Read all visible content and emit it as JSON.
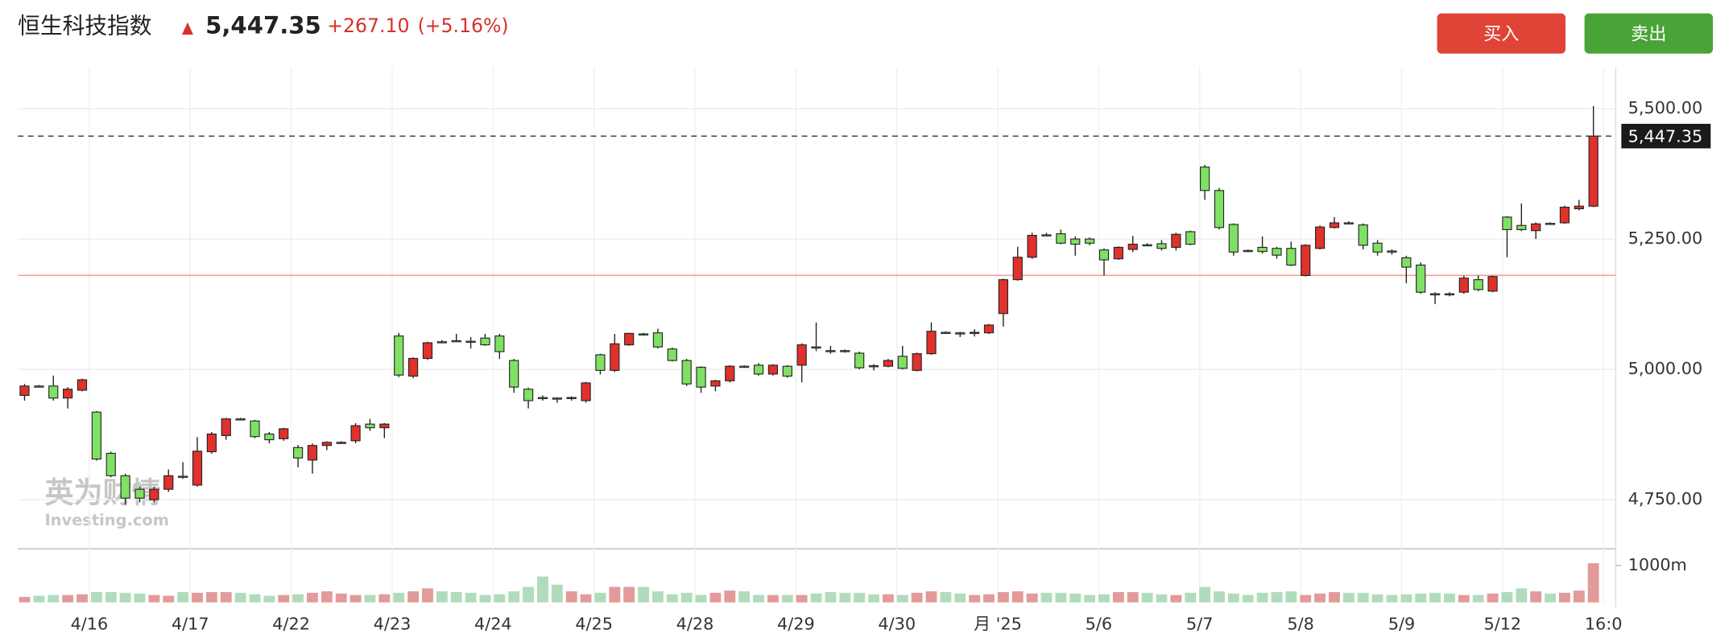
{
  "header": {
    "name": "恒生科技指数",
    "change": "+267.10",
    "change_pct": "(+5.16%)",
    "buy": "买入",
    "sell": "卖出"
  },
  "chart_data": {
    "type": "candlestick",
    "last_price": {
      "value": 5447.35,
      "label": "5,447.35"
    },
    "prev_close": 5180.25,
    "open": [
      4950,
      4968,
      4968,
      4945,
      4960,
      4918,
      4839,
      4796,
      4770,
      4750,
      4770,
      4795,
      4778,
      4842,
      4873,
      4905,
      4901,
      4876,
      4867,
      4850,
      4826,
      4854,
      4860,
      4863,
      4895,
      4888,
      5064,
      4987,
      5021,
      5053,
      5055,
      5054,
      5060,
      5064,
      5017,
      4962,
      4946,
      4945,
      4945,
      4940,
      5028,
      4998,
      5047,
      5068,
      5070,
      5039,
      5017,
      5004,
      4968,
      4978,
      5006,
      5008,
      4991,
      5006,
      5008,
      5043,
      5036,
      5036,
      5031,
      5007,
      5006,
      5025,
      4998,
      5030,
      5071,
      5070,
      5070,
      5070,
      5107,
      5172,
      5215,
      5258,
      5260,
      5250,
      5250,
      5229,
      5212,
      5230,
      5239,
      5241,
      5234,
      5264,
      5388,
      5343,
      5278,
      5228,
      5234,
      5232,
      5232,
      5180,
      5232,
      5272,
      5281,
      5277,
      5242,
      5227,
      5214,
      5200,
      5145,
      5145,
      5148,
      5172,
      5150,
      5292,
      5276,
      5266,
      5280,
      5281,
      5308,
      5313
    ],
    "high": [
      4972,
      4970,
      4988,
      4966,
      4982,
      4920,
      4842,
      4800,
      4775,
      4775,
      4808,
      4822,
      4870,
      4880,
      4907,
      4907,
      4903,
      4880,
      4888,
      4855,
      4858,
      4862,
      4862,
      4897,
      4905,
      4897,
      5070,
      5023,
      5053,
      5056,
      5068,
      5062,
      5068,
      5068,
      5020,
      4965,
      4950,
      4946,
      4948,
      4976,
      5030,
      5068,
      5070,
      5070,
      5078,
      5042,
      5020,
      5006,
      4980,
      5008,
      5008,
      5012,
      5010,
      5008,
      5050,
      5090,
      5045,
      5038,
      5034,
      5010,
      5020,
      5045,
      5032,
      5090,
      5073,
      5072,
      5077,
      5087,
      5174,
      5235,
      5262,
      5262,
      5268,
      5255,
      5253,
      5232,
      5236,
      5256,
      5242,
      5248,
      5262,
      5266,
      5392,
      5348,
      5280,
      5230,
      5255,
      5235,
      5245,
      5240,
      5276,
      5292,
      5284,
      5280,
      5248,
      5230,
      5218,
      5205,
      5148,
      5148,
      5180,
      5180,
      5180,
      5294,
      5318,
      5282,
      5282,
      5314,
      5325,
      5505
    ],
    "low": [
      4940,
      4966,
      4940,
      4925,
      4958,
      4825,
      4793,
      4740,
      4745,
      4745,
      4765,
      4790,
      4775,
      4838,
      4865,
      4903,
      4868,
      4858,
      4863,
      4812,
      4800,
      4845,
      4858,
      4858,
      4882,
      4868,
      4985,
      4983,
      5018,
      5050,
      5052,
      5040,
      5045,
      5020,
      4955,
      4925,
      4940,
      4936,
      4940,
      4936,
      4990,
      4995,
      5045,
      5065,
      5040,
      5015,
      4968,
      4955,
      4958,
      4975,
      5003,
      4988,
      4988,
      4984,
      4975,
      5035,
      5030,
      5032,
      5000,
      4998,
      5004,
      5000,
      4996,
      5028,
      5068,
      5062,
      5063,
      5068,
      5082,
      5170,
      5212,
      5255,
      5240,
      5218,
      5238,
      5180,
      5210,
      5225,
      5236,
      5228,
      5228,
      5238,
      5325,
      5268,
      5218,
      5225,
      5222,
      5212,
      5198,
      5178,
      5230,
      5270,
      5278,
      5230,
      5218,
      5220,
      5165,
      5145,
      5125,
      5140,
      5145,
      5150,
      5148,
      5215,
      5265,
      5250,
      5278,
      5279,
      5305,
      5311
    ],
    "close": [
      4968,
      4967,
      4945,
      4962,
      4980,
      4828,
      4796,
      4753,
      4753,
      4770,
      4796,
      4793,
      4843,
      4876,
      4905,
      4904,
      4871,
      4865,
      4886,
      4830,
      4854,
      4860,
      4860,
      4892,
      4888,
      4895,
      4989,
      5021,
      5051,
      5052,
      5054,
      5052,
      5047,
      5034,
      4966,
      4940,
      4945,
      4944,
      4946,
      4974,
      4998,
      5049,
      5069,
      5067,
      5043,
      5017,
      4972,
      4966,
      4978,
      5006,
      5005,
      4991,
      5008,
      4987,
      5047,
      5041,
      5035,
      5034,
      5003,
      5006,
      5017,
      5002,
      5030,
      5073,
      5070,
      5069,
      5071,
      5085,
      5172,
      5215,
      5257,
      5257,
      5242,
      5240,
      5242,
      5210,
      5234,
      5240,
      5238,
      5232,
      5259,
      5240,
      5343,
      5272,
      5225,
      5227,
      5226,
      5219,
      5200,
      5238,
      5273,
      5281,
      5280,
      5238,
      5225,
      5225,
      5196,
      5148,
      5144,
      5144,
      5175,
      5153,
      5178,
      5268,
      5268,
      5279,
      5279,
      5311,
      5313,
      5447.35
    ],
    "volume": [
      150,
      180,
      200,
      200,
      220,
      280,
      280,
      260,
      240,
      200,
      180,
      280,
      260,
      280,
      280,
      260,
      220,
      180,
      200,
      220,
      260,
      300,
      240,
      200,
      200,
      220,
      260,
      300,
      380,
      300,
      280,
      260,
      200,
      220,
      300,
      420,
      700,
      480,
      300,
      220,
      260,
      420,
      420,
      420,
      300,
      220,
      260,
      200,
      260,
      320,
      300,
      200,
      200,
      200,
      200,
      240,
      280,
      260,
      260,
      220,
      220,
      200,
      260,
      300,
      280,
      240,
      200,
      220,
      280,
      300,
      240,
      260,
      260,
      240,
      200,
      220,
      280,
      280,
      260,
      220,
      200,
      260,
      420,
      300,
      240,
      200,
      260,
      280,
      300,
      200,
      240,
      280,
      260,
      260,
      220,
      200,
      220,
      240,
      260,
      240,
      200,
      200,
      240,
      280,
      380,
      300,
      240,
      260,
      320,
      1060
    ],
    "up_color": "#e0312b",
    "down_color": "#7fe063",
    "volume_up_color": "#e39a9a",
    "volume_down_color": "#b0dcbc",
    "ylim": [
      4660,
      5580
    ],
    "yticks": [
      {
        "value": 4750,
        "label": "4,750.00"
      },
      {
        "value": 5000,
        "label": "5,000.00"
      },
      {
        "value": 5250,
        "label": "5,250.00"
      },
      {
        "value": 5500,
        "label": "5,500.00"
      }
    ],
    "volume_lim": [
      0,
      1450
    ],
    "volume_ticks": [
      {
        "value": 1000,
        "label": "1000m"
      }
    ],
    "x_labels": [
      "4/16",
      "4/17",
      "4/22",
      "4/23",
      "4/24",
      "4/25",
      "4/28",
      "4/29",
      "4/30",
      "月 '25",
      "5/6",
      "5/7",
      "5/8",
      "5/9",
      "5/12",
      "16:0"
    ],
    "grid": true,
    "watermark": [
      "英为财情",
      "Investing.com"
    ]
  }
}
